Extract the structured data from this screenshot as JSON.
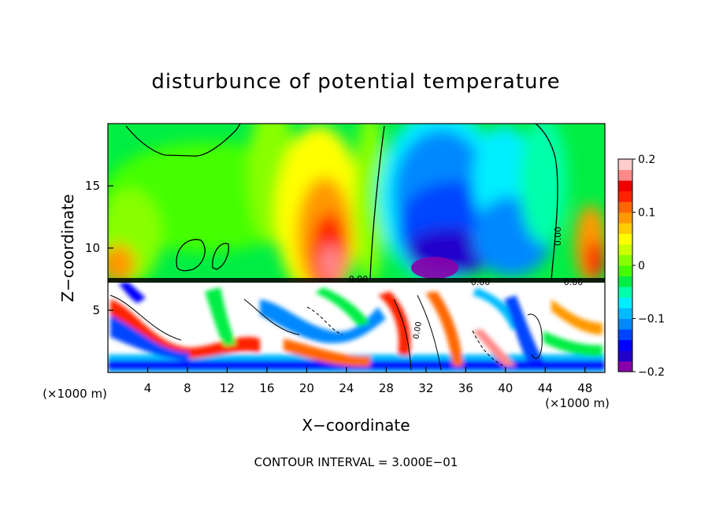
{
  "chart_data": {
    "type": "heatmap",
    "title": "disturbunce of potential temperature",
    "xlabel": "X−coordinate",
    "ylabel": "Z−coordinate",
    "x_unit_left": "(×1000 m)",
    "x_unit_right": "(×1000 m)",
    "footer": "CONTOUR INTERVAL = 3.000E−01",
    "xlim": [
      0,
      50
    ],
    "ylim": [
      0,
      20
    ],
    "x_ticks": [
      4,
      8,
      12,
      16,
      20,
      24,
      28,
      32,
      36,
      40,
      44,
      48
    ],
    "y_ticks": [
      5,
      10,
      15
    ],
    "colorbar": {
      "min": -0.2,
      "max": 0.2,
      "tick_values": [
        0.2,
        0.1,
        0,
        -0.1,
        -0.2
      ],
      "tick_labels": [
        "0.2",
        "0.1",
        "0",
        "−0.1",
        "−0.2"
      ],
      "colors": [
        "#8800aa",
        "#2200cc",
        "#0000ff",
        "#0044ff",
        "#0088ff",
        "#00bbff",
        "#00eeff",
        "#00ffaa",
        "#00ee44",
        "#44ff00",
        "#88ff00",
        "#ccff00",
        "#ffff00",
        "#ffcc00",
        "#ff9900",
        "#ff6600",
        "#ff2200",
        "#ee0000",
        "#ff8888",
        "#ffcccc"
      ]
    },
    "contour_labels": [
      "0.00",
      "0.00",
      "0.00",
      "0.00",
      "0.00"
    ]
  }
}
